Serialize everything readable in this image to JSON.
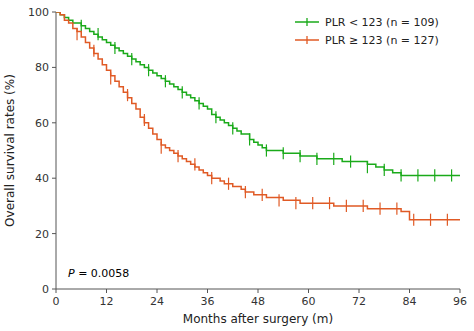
{
  "chart_data": {
    "type": "step",
    "x_label": "Months after surgery (m)",
    "y_label": "Overall survival rates (%)",
    "xlim": [
      0,
      96
    ],
    "ylim": [
      0,
      100
    ],
    "xticks": [
      0,
      12,
      24,
      36,
      48,
      60,
      72,
      84,
      96
    ],
    "yticks": [
      0,
      20,
      40,
      60,
      80,
      100
    ],
    "grid": false,
    "legend": "upper right",
    "annotation": "P = 0.0058",
    "series": [
      {
        "name": "PLR < 123 (n = 109)",
        "color": "#1aaa1a",
        "x": [
          0,
          1,
          2,
          3,
          4,
          5,
          6,
          7,
          8,
          9,
          10,
          11,
          12,
          13,
          14,
          15,
          16,
          17,
          18,
          19,
          20,
          21,
          22,
          23,
          24,
          25,
          26,
          27,
          28,
          29,
          30,
          31,
          32,
          33,
          34,
          35,
          36,
          37,
          38,
          39,
          40,
          41,
          42,
          43,
          44,
          46,
          47,
          48,
          49,
          50,
          52,
          54,
          56,
          58,
          60,
          62,
          64,
          66,
          68,
          70,
          72,
          74,
          76,
          78,
          80,
          82,
          84,
          86,
          88,
          90,
          92,
          94,
          96
        ],
        "values": [
          100,
          99,
          98,
          97,
          96,
          96,
          95,
          94,
          93,
          92,
          91,
          90,
          89,
          88,
          87,
          86,
          85,
          84,
          83,
          82,
          81,
          80,
          79,
          78,
          77,
          76,
          75,
          74,
          73,
          72,
          71,
          70,
          69,
          68,
          67,
          66,
          65,
          63,
          62,
          61,
          60,
          59,
          58,
          57,
          56,
          54,
          53,
          52,
          51,
          50,
          50,
          49,
          49,
          48,
          48,
          47,
          47,
          47,
          46,
          46,
          46,
          45,
          44,
          43,
          42,
          41,
          41,
          41,
          41,
          41,
          41,
          41,
          41
        ],
        "censor_x": [
          6,
          10,
          14,
          18,
          22,
          26,
          30,
          34,
          38,
          42,
          46,
          50,
          54,
          58,
          62,
          66,
          70,
          74,
          78,
          82,
          86,
          90,
          94
        ],
        "censor_y": [
          95,
          92,
          87,
          83,
          79,
          75,
          71,
          67,
          62,
          58,
          54,
          50,
          49,
          48,
          47,
          47,
          46,
          44,
          43,
          41,
          41,
          41,
          41
        ]
      },
      {
        "name": "PLR ≥ 123 (n = 127)",
        "color": "#e05a25",
        "x": [
          0,
          1,
          2,
          3,
          4,
          5,
          6,
          7,
          8,
          9,
          10,
          11,
          12,
          13,
          14,
          15,
          16,
          17,
          18,
          19,
          20,
          21,
          22,
          23,
          24,
          25,
          26,
          27,
          28,
          29,
          30,
          31,
          32,
          33,
          34,
          35,
          36,
          37,
          38,
          39,
          40,
          41,
          42,
          43,
          44,
          45,
          46,
          47,
          48,
          50,
          52,
          54,
          56,
          58,
          60,
          62,
          64,
          66,
          68,
          70,
          72,
          74,
          76,
          78,
          80,
          82,
          84,
          86,
          88,
          90,
          92,
          94,
          96
        ],
        "values": [
          100,
          99,
          97,
          96,
          94,
          93,
          91,
          89,
          87,
          85,
          83,
          81,
          79,
          77,
          75,
          73,
          71,
          69,
          67,
          65,
          62,
          60,
          58,
          56,
          54,
          52,
          51,
          50,
          49,
          48,
          47,
          46,
          45,
          44,
          43,
          42,
          41,
          40,
          40,
          39,
          38,
          38,
          37,
          37,
          36,
          35,
          35,
          34,
          34,
          33,
          33,
          32,
          32,
          31,
          31,
          31,
          31,
          30,
          30,
          30,
          30,
          29,
          29,
          29,
          29,
          28,
          25,
          25,
          25,
          25,
          25,
          25,
          25
        ],
        "censor_x": [
          5,
          9,
          13,
          17,
          21,
          25,
          29,
          33,
          37,
          41,
          45,
          49,
          53,
          57,
          61,
          65,
          69,
          73,
          77,
          81,
          85,
          89,
          93
        ],
        "censor_y": [
          92,
          86,
          76,
          70,
          61,
          51,
          48,
          45,
          40,
          38,
          35,
          34,
          32,
          31,
          31,
          31,
          30,
          30,
          29,
          29,
          25,
          25,
          25
        ]
      }
    ]
  }
}
